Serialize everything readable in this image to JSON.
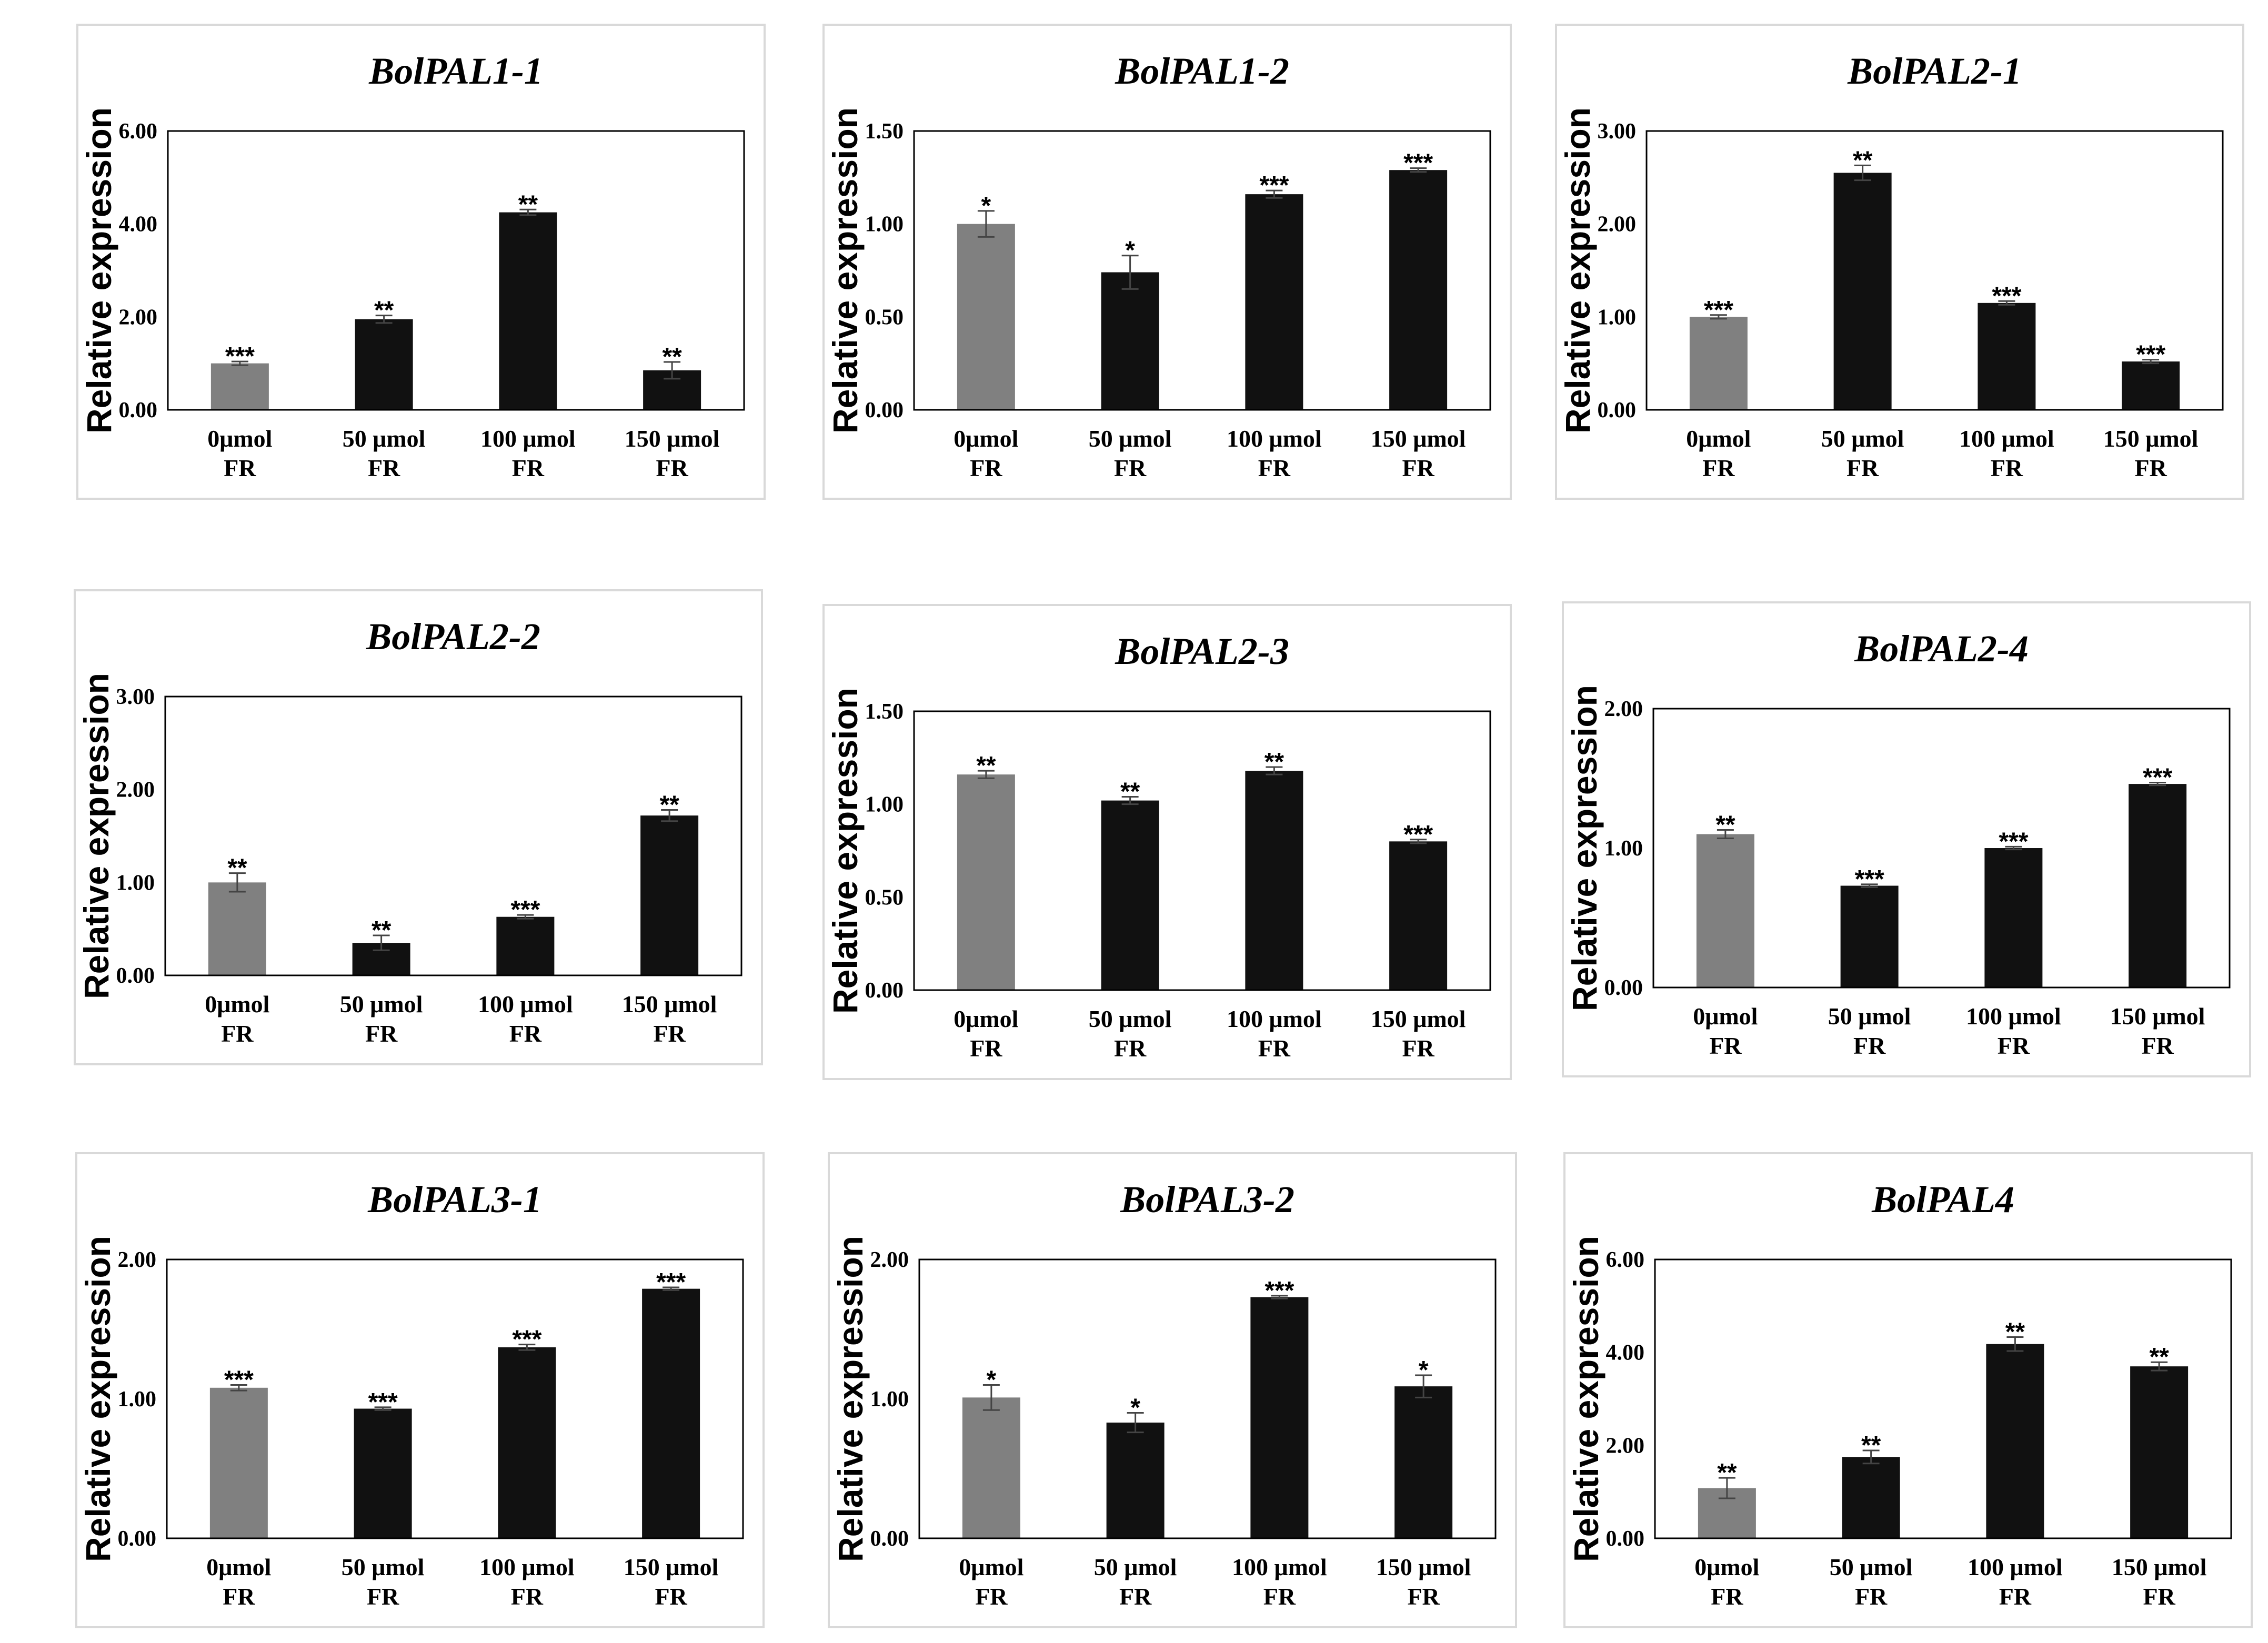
{
  "colors": {
    "control": "#808080",
    "treatment": "#111111",
    "frame": "#000000",
    "panel_border": "#d9d9d9"
  },
  "chart_data": [
    {
      "type": "bar",
      "title": "BolPAL1-1",
      "ylabel": "Relative expression",
      "xlabel": "",
      "categories": [
        [
          "0μmol",
          "FR"
        ],
        [
          "50 μmol",
          "FR"
        ],
        [
          "100 μmol",
          "FR"
        ],
        [
          "150 μmol",
          "FR"
        ]
      ],
      "yticks": [
        "0.00",
        "2.00",
        "4.00",
        "6.00"
      ],
      "ylim": [
        0,
        6
      ],
      "values": [
        1.0,
        1.95,
        4.25,
        0.85
      ],
      "errors": [
        0.04,
        0.08,
        0.06,
        0.18
      ],
      "significance": [
        "***",
        "**",
        "**",
        "**"
      ]
    },
    {
      "type": "bar",
      "title": "BolPAL1-2",
      "ylabel": "Relative expression",
      "xlabel": "",
      "categories": [
        [
          "0μmol",
          "FR"
        ],
        [
          "50 μmol",
          "FR"
        ],
        [
          "100 μmol",
          "FR"
        ],
        [
          "150 μmol",
          "FR"
        ]
      ],
      "yticks": [
        "0.00",
        "0.50",
        "1.00",
        "1.50"
      ],
      "ylim": [
        0,
        1.5
      ],
      "values": [
        1.0,
        0.74,
        1.16,
        1.29
      ],
      "errors": [
        0.07,
        0.09,
        0.02,
        0.01
      ],
      "significance": [
        "*",
        "*",
        "***",
        "***"
      ]
    },
    {
      "type": "bar",
      "title": "BolPAL2-1",
      "ylabel": "Relative expression",
      "xlabel": "",
      "categories": [
        [
          "0μmol",
          "FR"
        ],
        [
          "50 μmol",
          "FR"
        ],
        [
          "100 μmol",
          "FR"
        ],
        [
          "150 μmol",
          "FR"
        ]
      ],
      "yticks": [
        "0.00",
        "1.00",
        "2.00",
        "3.00"
      ],
      "ylim": [
        0,
        3
      ],
      "values": [
        1.0,
        2.55,
        1.15,
        0.52
      ],
      "errors": [
        0.02,
        0.08,
        0.02,
        0.02
      ],
      "significance": [
        "***",
        "**",
        "***",
        "***"
      ]
    },
    {
      "type": "bar",
      "title": "BolPAL2-2",
      "ylabel": "Relative expression",
      "xlabel": "",
      "categories": [
        [
          "0μmol",
          "FR"
        ],
        [
          "50 μmol",
          "FR"
        ],
        [
          "100 μmol",
          "FR"
        ],
        [
          "150 μmol",
          "FR"
        ]
      ],
      "yticks": [
        "0.00",
        "1.00",
        "2.00",
        "3.00"
      ],
      "ylim": [
        0,
        3
      ],
      "values": [
        1.0,
        0.35,
        0.63,
        1.72
      ],
      "errors": [
        0.1,
        0.08,
        0.02,
        0.06
      ],
      "significance": [
        "**",
        "**",
        "***",
        "**"
      ]
    },
    {
      "type": "bar",
      "title": "BolPAL2-3",
      "ylabel": "Relative expression",
      "xlabel": "",
      "categories": [
        [
          "0μmol",
          "FR"
        ],
        [
          "50 μmol",
          "FR"
        ],
        [
          "100 μmol",
          "FR"
        ],
        [
          "150 μmol",
          "FR"
        ]
      ],
      "yticks": [
        "0.00",
        "0.50",
        "1.00",
        "1.50"
      ],
      "ylim": [
        0,
        1.5
      ],
      "values": [
        1.16,
        1.02,
        1.18,
        0.8
      ],
      "errors": [
        0.02,
        0.02,
        0.02,
        0.01
      ],
      "significance": [
        "**",
        "**",
        "**",
        "***"
      ]
    },
    {
      "type": "bar",
      "title": "BolPAL2-4",
      "ylabel": "Relative expression",
      "xlabel": "",
      "categories": [
        [
          "0μmol",
          "FR"
        ],
        [
          "50 μmol",
          "FR"
        ],
        [
          "100 μmol",
          "FR"
        ],
        [
          "150 μmol",
          "FR"
        ]
      ],
      "yticks": [
        "0.00",
        "1.00",
        "2.00"
      ],
      "ylim": [
        0,
        2
      ],
      "values": [
        1.1,
        0.73,
        1.0,
        1.46
      ],
      "errors": [
        0.03,
        0.01,
        0.01,
        0.01
      ],
      "significance": [
        "**",
        "***",
        "***",
        "***"
      ]
    },
    {
      "type": "bar",
      "title": "BolPAL3-1",
      "ylabel": "Relative expression",
      "xlabel": "",
      "categories": [
        [
          "0μmol",
          "FR"
        ],
        [
          "50 μmol",
          "FR"
        ],
        [
          "100 μmol",
          "FR"
        ],
        [
          "150 μmol",
          "FR"
        ]
      ],
      "yticks": [
        "0.00",
        "1.00",
        "2.00"
      ],
      "ylim": [
        0,
        2
      ],
      "values": [
        1.08,
        0.93,
        1.37,
        1.79
      ],
      "errors": [
        0.02,
        0.01,
        0.02,
        0.01
      ],
      "significance": [
        "***",
        "***",
        "***",
        "***"
      ]
    },
    {
      "type": "bar",
      "title": "BolPAL3-2",
      "ylabel": "Relative expression",
      "xlabel": "",
      "categories": [
        [
          "0μmol",
          "FR"
        ],
        [
          "50 μmol",
          "FR"
        ],
        [
          "100 μmol",
          "FR"
        ],
        [
          "150 μmol",
          "FR"
        ]
      ],
      "yticks": [
        "0.00",
        "1.00",
        "2.00"
      ],
      "ylim": [
        0,
        2
      ],
      "values": [
        1.01,
        0.83,
        1.73,
        1.09
      ],
      "errors": [
        0.09,
        0.07,
        0.01,
        0.08
      ],
      "significance": [
        "*",
        "*",
        "***",
        "*"
      ]
    },
    {
      "type": "bar",
      "title": "BolPAL4",
      "ylabel": "Relative expression",
      "xlabel": "",
      "categories": [
        [
          "0μmol",
          "FR"
        ],
        [
          "50 μmol",
          "FR"
        ],
        [
          "100 μmol",
          "FR"
        ],
        [
          "150 μmol",
          "FR"
        ]
      ],
      "yticks": [
        "0.00",
        "2.00",
        "4.00",
        "6.00"
      ],
      "ylim": [
        0,
        6
      ],
      "values": [
        1.08,
        1.75,
        4.18,
        3.7
      ],
      "errors": [
        0.22,
        0.14,
        0.15,
        0.09
      ],
      "significance": [
        "**",
        "**",
        "**",
        "**"
      ]
    }
  ]
}
